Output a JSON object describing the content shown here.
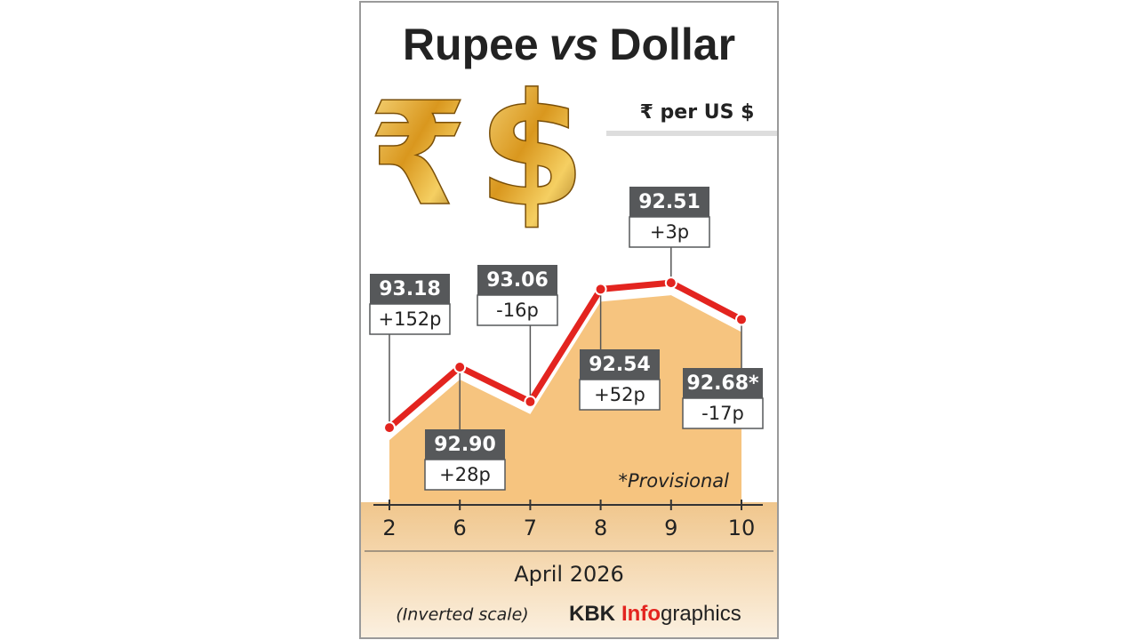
{
  "chart_data": {
    "type": "line",
    "title_parts": [
      "Rupee",
      "vs",
      "Dollar"
    ],
    "symbols": [
      "₹",
      "$"
    ],
    "unit_label": "₹ per US $",
    "categories": [
      "2",
      "6",
      "7",
      "8",
      "9",
      "10"
    ],
    "x_label": "April 2026",
    "values": [
      93.18,
      92.9,
      93.06,
      92.54,
      92.51,
      92.68
    ],
    "value_labels": [
      "93.18",
      "92.90",
      "93.06",
      "92.54",
      "92.51",
      "92.68*"
    ],
    "change_labels": [
      "+152p",
      "+28p",
      "-16p",
      "+52p",
      "+3p",
      "-17p"
    ],
    "ylim": [
      92.0,
      93.5
    ],
    "y_inverted": true,
    "color": "#e3241f",
    "area_color": "#f6c47f",
    "annotation": "*Provisional",
    "scale_note": "(Inverted scale)",
    "credit_parts": [
      "KBK",
      "Info",
      "graphics"
    ]
  }
}
